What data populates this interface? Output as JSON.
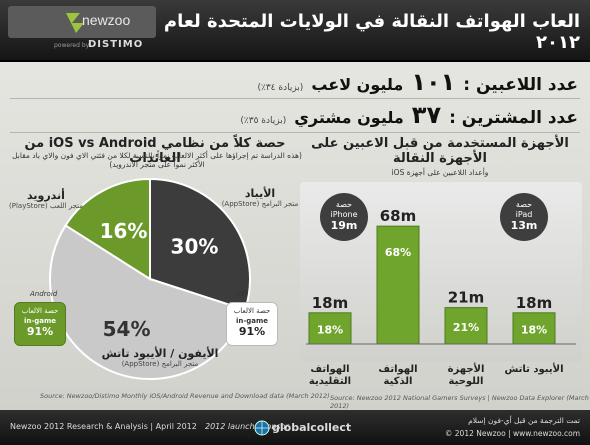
{
  "header": {
    "title": "العاب الهواتف النقالة في الولايات المتحدة لعام ٢٠١٢",
    "logo_name": "newzoo",
    "logo_powered": "powered by",
    "logo_partner": "DISTIMO"
  },
  "stats": {
    "players_label": "عدد اللاعبين :",
    "players_value": "١٠١",
    "players_unit": "مليون لاعب",
    "players_note": "(بزيادة ٣٤٪)",
    "payers_label": "عدد المشترين :",
    "payers_value": "٣٧",
    "payers_unit": "مليون مشتري",
    "payers_note": "(بزيادة ٣٥٪)"
  },
  "left_panel": {
    "title": "حصة كلاً من نظامي iOS vs Android من العائدات",
    "subtitle": "(هذه الدراسة تم إجراؤها على أكثر الالعاب نمواً بالنسبة لكلا من فئتي الاي فون والاي باد مقابل الأكثر نمواً على متجر الأندرويد)",
    "source": "Source: Newzoo/Distimo Monthly iOS/Android Revenue and Download data (March 2012)",
    "label_android_title": "أندرويد",
    "label_android_sub": "متجر اللعب (PlayStore)",
    "label_ipad_title": "الأيباد",
    "label_ipad_sub": "متجر البرامج (AppStore)",
    "label_iphone_title": "الأيفون / الأيبود تاتش",
    "label_iphone_sub": "متجر البرامج (AppStore)",
    "os_android": "Android",
    "os_ios": "iOS",
    "badge_android_label": "حصة الالعاب",
    "badge_android_type": "in-game",
    "badge_android_pct": "91%",
    "badge_ios_label": "حصة الالعاب",
    "badge_ios_type": "in-game",
    "badge_ios_pct": "91%"
  },
  "right_panel": {
    "title": "الأجهزة المستخدمة من قبل الاعبين على الأجهزة النقالة",
    "subtitle": "وأعداد اللاعبين على أجهزة iOS",
    "source": "Source: Newzoo 2012 National Gamers Surveys | Newzoo Data Explorer (March 2012)",
    "callout_iphone_label": "حصة",
    "callout_iphone_name": "iPhone",
    "callout_iphone_value": "19m",
    "callout_ipad_label": "حصة",
    "callout_ipad_name": "iPad",
    "callout_ipad_value": "13m"
  },
  "colors": {
    "dark_slice": "#3c3c3c",
    "green_slice": "#6b9a2a",
    "light_slice": "#c9c9c9",
    "bar_green": "#6fa52c"
  },
  "chart_data": [
    {
      "type": "pie",
      "title": "حصة كلاً من نظامي iOS vs Android من العائدات",
      "slices": [
        {
          "label": "الأيباد",
          "value": 30,
          "display": "30%",
          "color": "#3c3c3c"
        },
        {
          "label": "الأيفون / الأيبود تاتش",
          "value": 54,
          "display": "54%",
          "color": "#c9c9c9"
        },
        {
          "label": "أندرويد",
          "value": 16,
          "display": "16%",
          "color": "#6b9a2a"
        }
      ]
    },
    {
      "type": "bar",
      "title": "الأجهزة المستخدمة من قبل الاعبين على الأجهزة النقالة",
      "categories": [
        "الهواتف التقليدية",
        "الهواتف الذكية",
        "الأجهزة اللوحية",
        "الأيبود تاتش"
      ],
      "values_m": [
        18,
        68,
        21,
        18
      ],
      "value_labels": [
        "18m",
        "68m",
        "21m",
        "18m"
      ],
      "percent_labels": [
        "18%",
        "68%",
        "21%",
        "18%"
      ],
      "ylim": [
        0,
        75
      ]
    }
  ],
  "footer": {
    "left": "Newzoo 2012 Research & Analysis | April 2012",
    "sponsor": "2012 launch sponsor",
    "global": "globalcollect",
    "right1": "تمت الترجمة من قبل أي-فون إسلام",
    "right2": "© 2012 Newzoo | www.newzoo.com"
  }
}
